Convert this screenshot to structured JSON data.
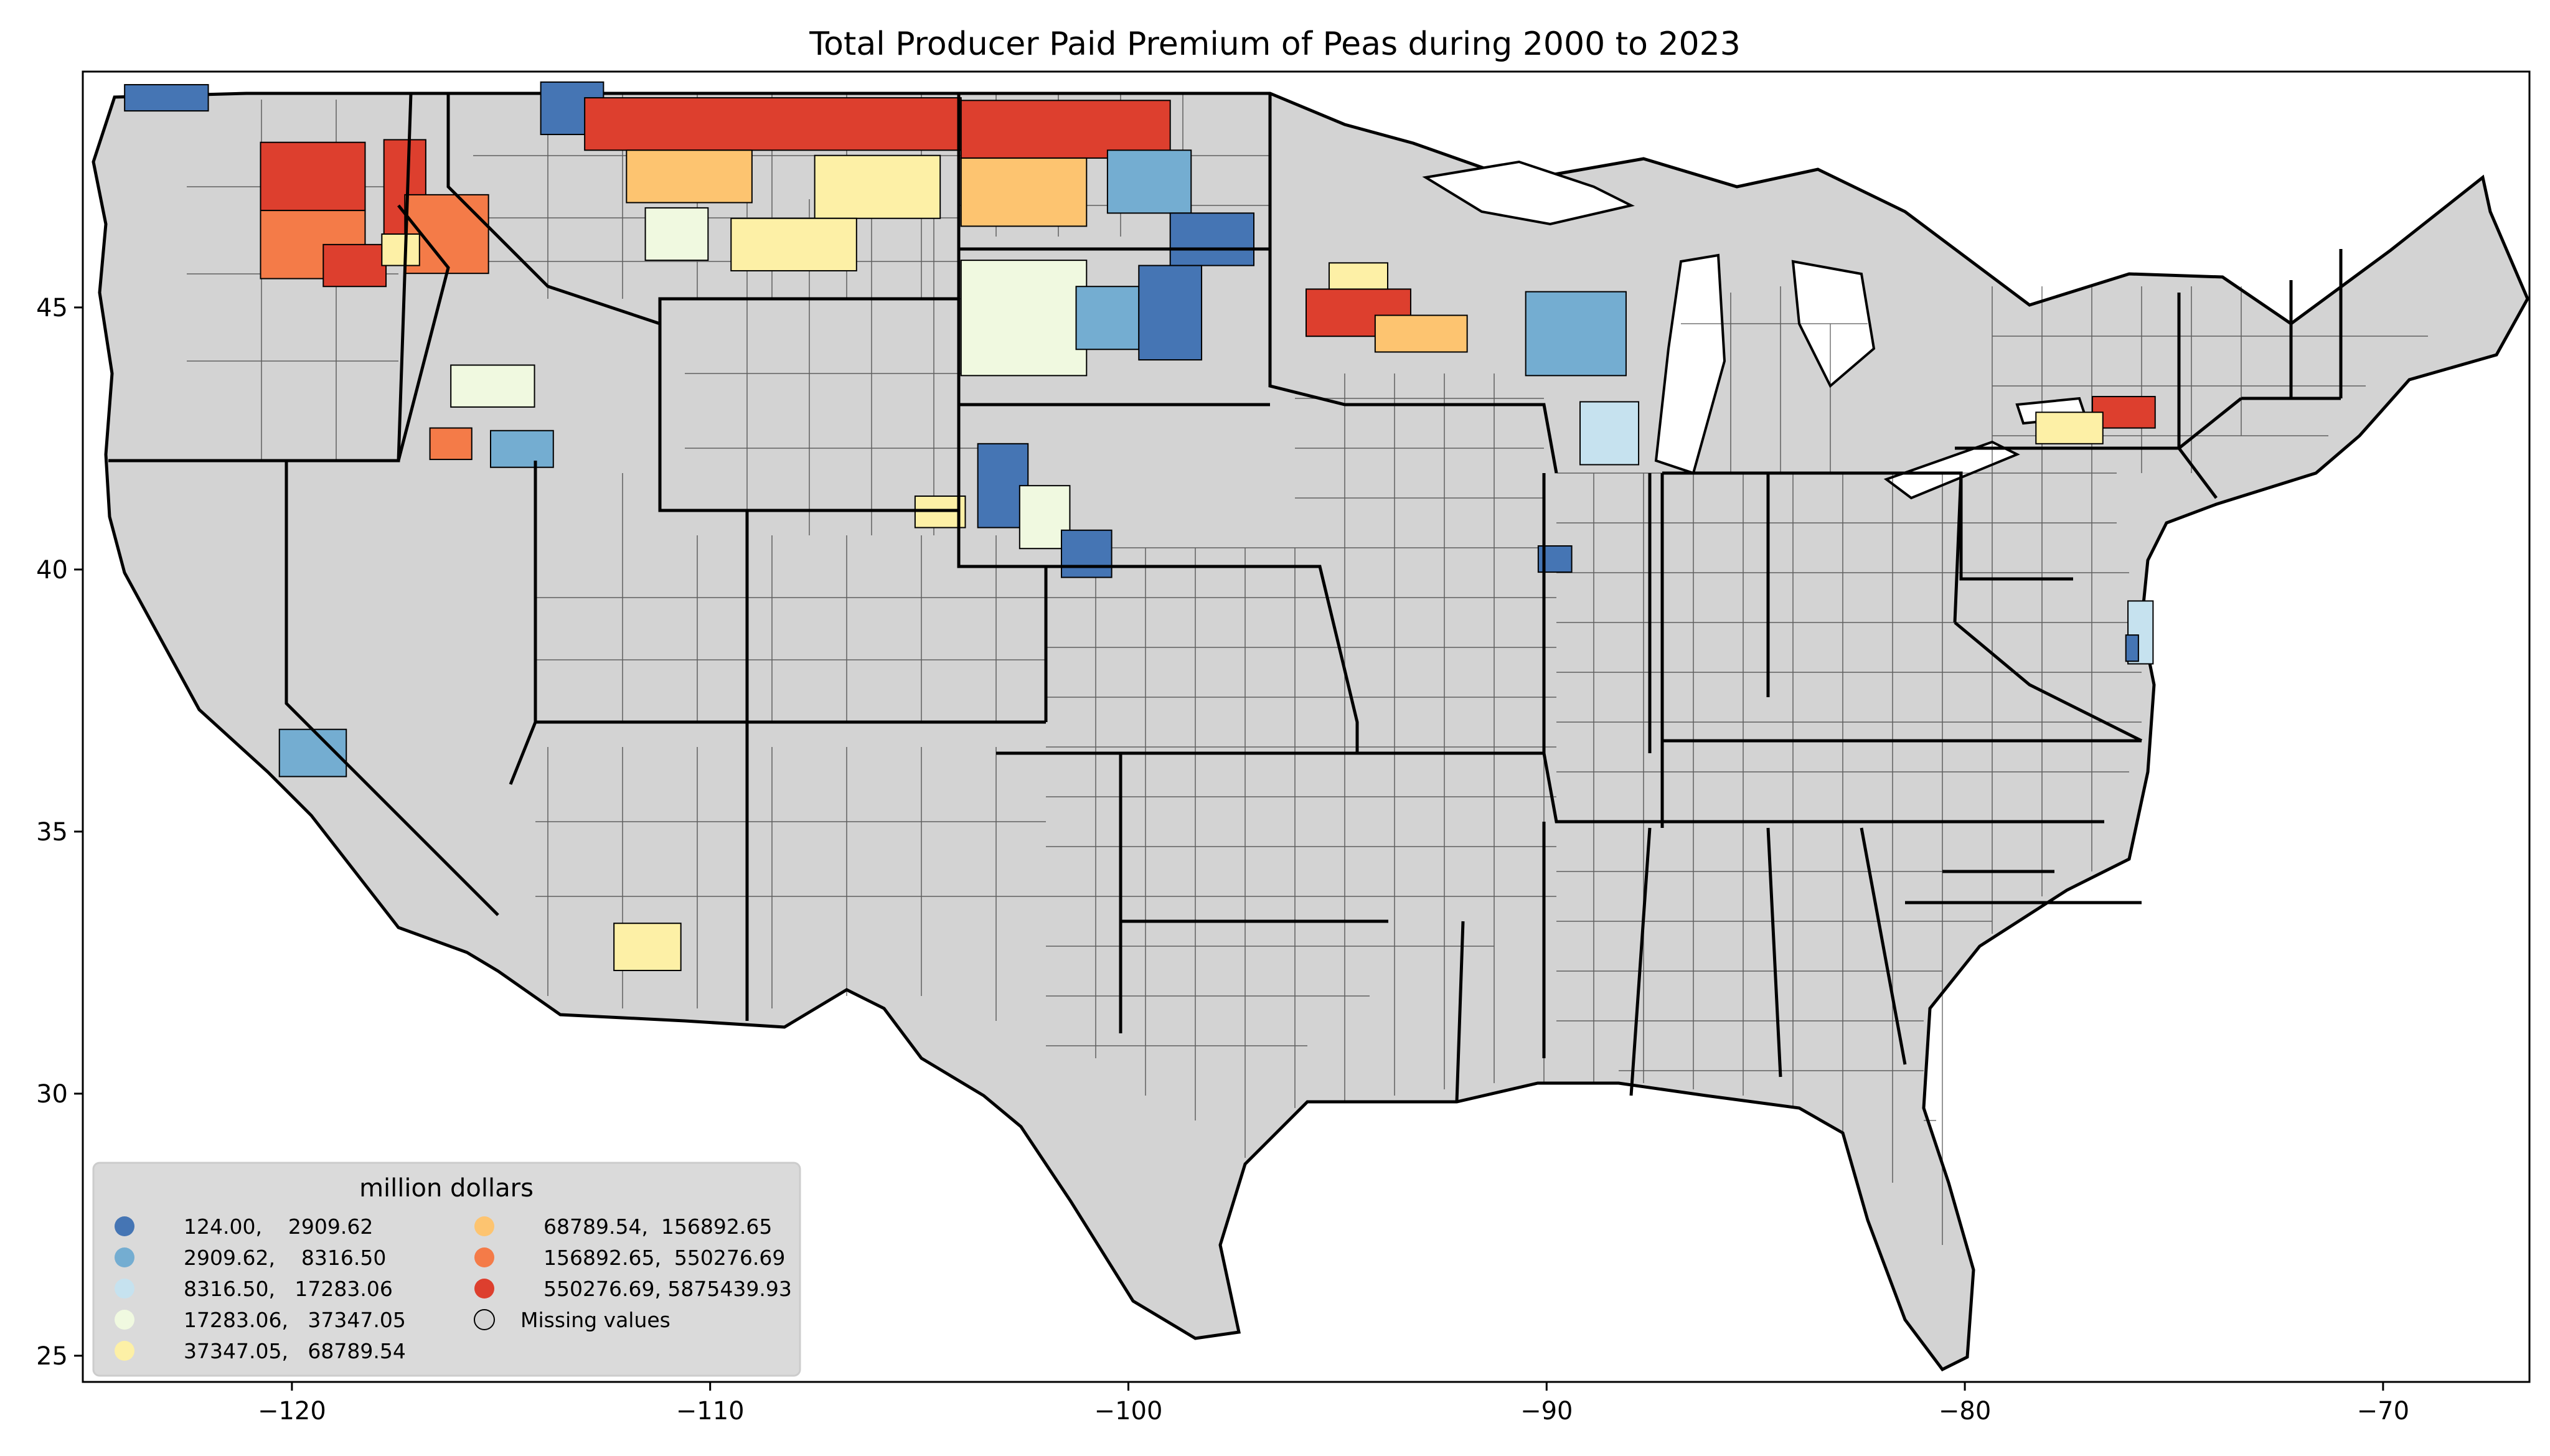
{
  "title": "Total Producer Paid Premium of Peas during 2000 to 2023",
  "colors": {
    "missing": "#d3d3d3",
    "bins": [
      "#4575b4",
      "#74add1",
      "#c6e2ef",
      "#f0f9e0",
      "#fdf0a6",
      "#fdc470",
      "#f47b48",
      "#dd3f2e"
    ]
  },
  "chart_data": {
    "type": "choropleth",
    "x_ticks": [
      "−120",
      "−110",
      "−100",
      "−90",
      "−80",
      "−70"
    ],
    "y_ticks": [
      "25",
      "30",
      "35",
      "40",
      "45"
    ],
    "xlim": [
      -125,
      -66.5
    ],
    "ylim": [
      24.5,
      49.5
    ],
    "legend": {
      "title": "million dollars",
      "placement": "lower-left",
      "entries": [
        {
          "label": "124.00,    2909.62",
          "bin": 0
        },
        {
          "label": "2909.62,    8316.50",
          "bin": 1
        },
        {
          "label": "8316.50,   17283.06",
          "bin": 2
        },
        {
          "label": "17283.06,   37347.05",
          "bin": 3
        },
        {
          "label": "37347.05,   68789.54",
          "bin": 4
        },
        {
          "label": "68789.54,  156892.65",
          "bin": 5
        },
        {
          "label": "156892.65,  550276.69",
          "bin": 6
        },
        {
          "label": "550276.69, 5875439.93",
          "bin": 7
        },
        {
          "label": "Missing values",
          "bin": -1
        }
      ]
    },
    "regions": [
      {
        "lon": -123,
        "lat": 49,
        "w": 2,
        "h": 0.5,
        "bin": 0
      },
      {
        "lon": -119.5,
        "lat": 47.5,
        "w": 2.5,
        "h": 1.3,
        "bin": 7
      },
      {
        "lon": -119.5,
        "lat": 46.2,
        "w": 2.5,
        "h": 1.3,
        "bin": 6
      },
      {
        "lon": -118.5,
        "lat": 45.8,
        "w": 1.5,
        "h": 0.8,
        "bin": 7
      },
      {
        "lon": -117.3,
        "lat": 47.2,
        "w": 1,
        "h": 2,
        "bin": 7
      },
      {
        "lon": -116.3,
        "lat": 46.4,
        "w": 2,
        "h": 1.5,
        "bin": 6
      },
      {
        "lon": -117.4,
        "lat": 46.1,
        "w": 0.9,
        "h": 0.6,
        "bin": 4
      },
      {
        "lon": -113.3,
        "lat": 48.8,
        "w": 1.5,
        "h": 1,
        "bin": 0
      },
      {
        "lon": -108.5,
        "lat": 48.5,
        "w": 9,
        "h": 1,
        "bin": 7
      },
      {
        "lon": -110.5,
        "lat": 47.5,
        "w": 3,
        "h": 1,
        "bin": 5
      },
      {
        "lon": -106,
        "lat": 47.3,
        "w": 3,
        "h": 1.2,
        "bin": 4
      },
      {
        "lon": -108,
        "lat": 46.2,
        "w": 3,
        "h": 1,
        "bin": 4
      },
      {
        "lon": -110.8,
        "lat": 46.4,
        "w": 1.5,
        "h": 1,
        "bin": 3
      },
      {
        "lon": -101.5,
        "lat": 48.4,
        "w": 5,
        "h": 1.1,
        "bin": 7
      },
      {
        "lon": -102.5,
        "lat": 47.2,
        "w": 3,
        "h": 1.3,
        "bin": 5
      },
      {
        "lon": -99.5,
        "lat": 47.4,
        "w": 2,
        "h": 1.2,
        "bin": 1
      },
      {
        "lon": -98,
        "lat": 46.3,
        "w": 2,
        "h": 1,
        "bin": 0
      },
      {
        "lon": -102.5,
        "lat": 44.8,
        "w": 3,
        "h": 2.2,
        "bin": 3
      },
      {
        "lon": -100.5,
        "lat": 44.8,
        "w": 1.5,
        "h": 1.2,
        "bin": 1
      },
      {
        "lon": -99,
        "lat": 44.9,
        "w": 1.5,
        "h": 1.8,
        "bin": 0
      },
      {
        "lon": -103,
        "lat": 41.6,
        "w": 1.2,
        "h": 1.6,
        "bin": 0
      },
      {
        "lon": -102,
        "lat": 41,
        "w": 1.2,
        "h": 1.2,
        "bin": 3
      },
      {
        "lon": -101,
        "lat": 40.3,
        "w": 1.2,
        "h": 0.9,
        "bin": 0
      },
      {
        "lon": -104.5,
        "lat": 41.1,
        "w": 1.2,
        "h": 0.6,
        "bin": 4
      },
      {
        "lon": -94.5,
        "lat": 44.9,
        "w": 2.5,
        "h": 0.9,
        "bin": 7
      },
      {
        "lon": -93,
        "lat": 44.5,
        "w": 2.2,
        "h": 0.7,
        "bin": 5
      },
      {
        "lon": -94.5,
        "lat": 45.6,
        "w": 1.4,
        "h": 0.5,
        "bin": 4
      },
      {
        "lon": -89.3,
        "lat": 44.5,
        "w": 2.4,
        "h": 1.6,
        "bin": 1
      },
      {
        "lon": -88.5,
        "lat": 42.6,
        "w": 1.4,
        "h": 1.2,
        "bin": 2
      },
      {
        "lon": -89.8,
        "lat": 40.2,
        "w": 0.8,
        "h": 0.5,
        "bin": 0
      },
      {
        "lon": -115.2,
        "lat": 43.5,
        "w": 2,
        "h": 0.8,
        "bin": 3
      },
      {
        "lon": -114.5,
        "lat": 42.3,
        "w": 1.5,
        "h": 0.7,
        "bin": 1
      },
      {
        "lon": -116.2,
        "lat": 42.4,
        "w": 1,
        "h": 0.6,
        "bin": 6
      },
      {
        "lon": -119.5,
        "lat": 36.5,
        "w": 1.6,
        "h": 0.9,
        "bin": 1
      },
      {
        "lon": -111.5,
        "lat": 32.8,
        "w": 1.6,
        "h": 0.9,
        "bin": 4
      },
      {
        "lon": -76.2,
        "lat": 43,
        "w": 1.5,
        "h": 0.6,
        "bin": 7
      },
      {
        "lon": -77.5,
        "lat": 42.7,
        "w": 1.6,
        "h": 0.6,
        "bin": 4
      },
      {
        "lon": -75.8,
        "lat": 38.8,
        "w": 0.6,
        "h": 1.2,
        "bin": 2
      },
      {
        "lon": -76,
        "lat": 38.5,
        "w": 0.3,
        "h": 0.5,
        "bin": 0
      }
    ]
  }
}
